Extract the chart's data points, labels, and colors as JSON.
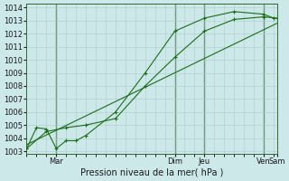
{
  "bg_color": "#cce8e8",
  "grid_color": "#aacccc",
  "line_color": "#1a6e1a",
  "xlabel": "Pression niveau de la mer( hPa )",
  "ylim": [
    1002.8,
    1014.3
  ],
  "yticks": [
    1003,
    1004,
    1005,
    1006,
    1007,
    1008,
    1009,
    1010,
    1011,
    1012,
    1013,
    1014
  ],
  "xlim": [
    0,
    228
  ],
  "day_lines_dark": [
    27,
    135,
    162,
    216
  ],
  "xtick_positions": [
    27,
    135,
    162,
    216,
    228
  ],
  "xtick_labels": [
    "Mar",
    "Dim",
    "Jeu",
    "Ven",
    "Sam"
  ],
  "series1_x": [
    0,
    9,
    18,
    27,
    36,
    45,
    54,
    81,
    108,
    135,
    162,
    189,
    216,
    225
  ],
  "series1_y": [
    1003.2,
    1004.8,
    1004.7,
    1003.2,
    1003.8,
    1003.8,
    1004.2,
    1006.0,
    1009.0,
    1012.2,
    1013.2,
    1013.7,
    1013.5,
    1013.2
  ],
  "series2_x": [
    0,
    18,
    36,
    54,
    81,
    108,
    135,
    162,
    189,
    216,
    228
  ],
  "series2_y": [
    1003.2,
    1004.5,
    1004.8,
    1005.0,
    1005.5,
    1008.0,
    1010.2,
    1012.2,
    1013.1,
    1013.3,
    1013.2
  ],
  "trend_x": [
    0,
    228
  ],
  "trend_y": [
    1003.5,
    1012.8
  ]
}
